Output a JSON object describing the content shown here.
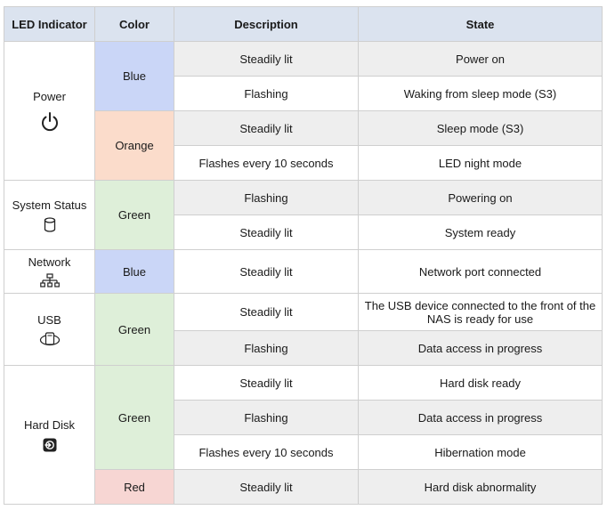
{
  "headers": {
    "indicator": "LED Indicator",
    "color": "Color",
    "description": "Description",
    "state": "State"
  },
  "groups": {
    "power": {
      "label": "Power",
      "icon": "power-icon",
      "colors": [
        {
          "name": "Blue",
          "swatch": "#cad6f7",
          "rows": [
            {
              "description": "Steadily lit",
              "state": "Power on"
            },
            {
              "description": "Flashing",
              "state": "Waking from sleep mode (S3)"
            }
          ]
        },
        {
          "name": "Orange",
          "swatch": "#fbdccb",
          "rows": [
            {
              "description": "Steadily lit",
              "state": "Sleep mode (S3)"
            },
            {
              "description": "Flashes every 10 seconds",
              "state": "LED night mode"
            }
          ]
        }
      ]
    },
    "system": {
      "label": "System Status",
      "icon": "database-icon",
      "colors": [
        {
          "name": "Green",
          "swatch": "#deefd9",
          "rows": [
            {
              "description": "Flashing",
              "state": "Powering on"
            },
            {
              "description": "Steadily lit",
              "state": "System ready"
            }
          ]
        }
      ]
    },
    "network": {
      "label": "Network",
      "icon": "network-icon",
      "colors": [
        {
          "name": "Blue",
          "swatch": "#cad6f7",
          "rows": [
            {
              "description": "Steadily lit",
              "state": "Network port connected"
            }
          ]
        }
      ]
    },
    "usb": {
      "label": "USB",
      "icon": "usb-drive-icon",
      "colors": [
        {
          "name": "Green",
          "swatch": "#deefd9",
          "rows": [
            {
              "description": "Steadily lit",
              "state": "The USB device connected to the front of the NAS is ready for use"
            },
            {
              "description": "Flashing",
              "state": "Data access in progress"
            }
          ]
        }
      ]
    },
    "harddisk": {
      "label": "Hard Disk",
      "icon": "hard-disk-icon",
      "colors": [
        {
          "name": "Green",
          "swatch": "#deefd9",
          "rows": [
            {
              "description": "Steadily lit",
              "state": "Hard disk ready"
            },
            {
              "description": "Flashing",
              "state": "Data access in progress"
            },
            {
              "description": "Flashes every 10 seconds",
              "state": "Hibernation mode"
            }
          ]
        },
        {
          "name": "Red",
          "swatch": "#f7d6d3",
          "rows": [
            {
              "description": "Steadily lit",
              "state": "Hard disk abnormality"
            }
          ]
        }
      ]
    }
  }
}
